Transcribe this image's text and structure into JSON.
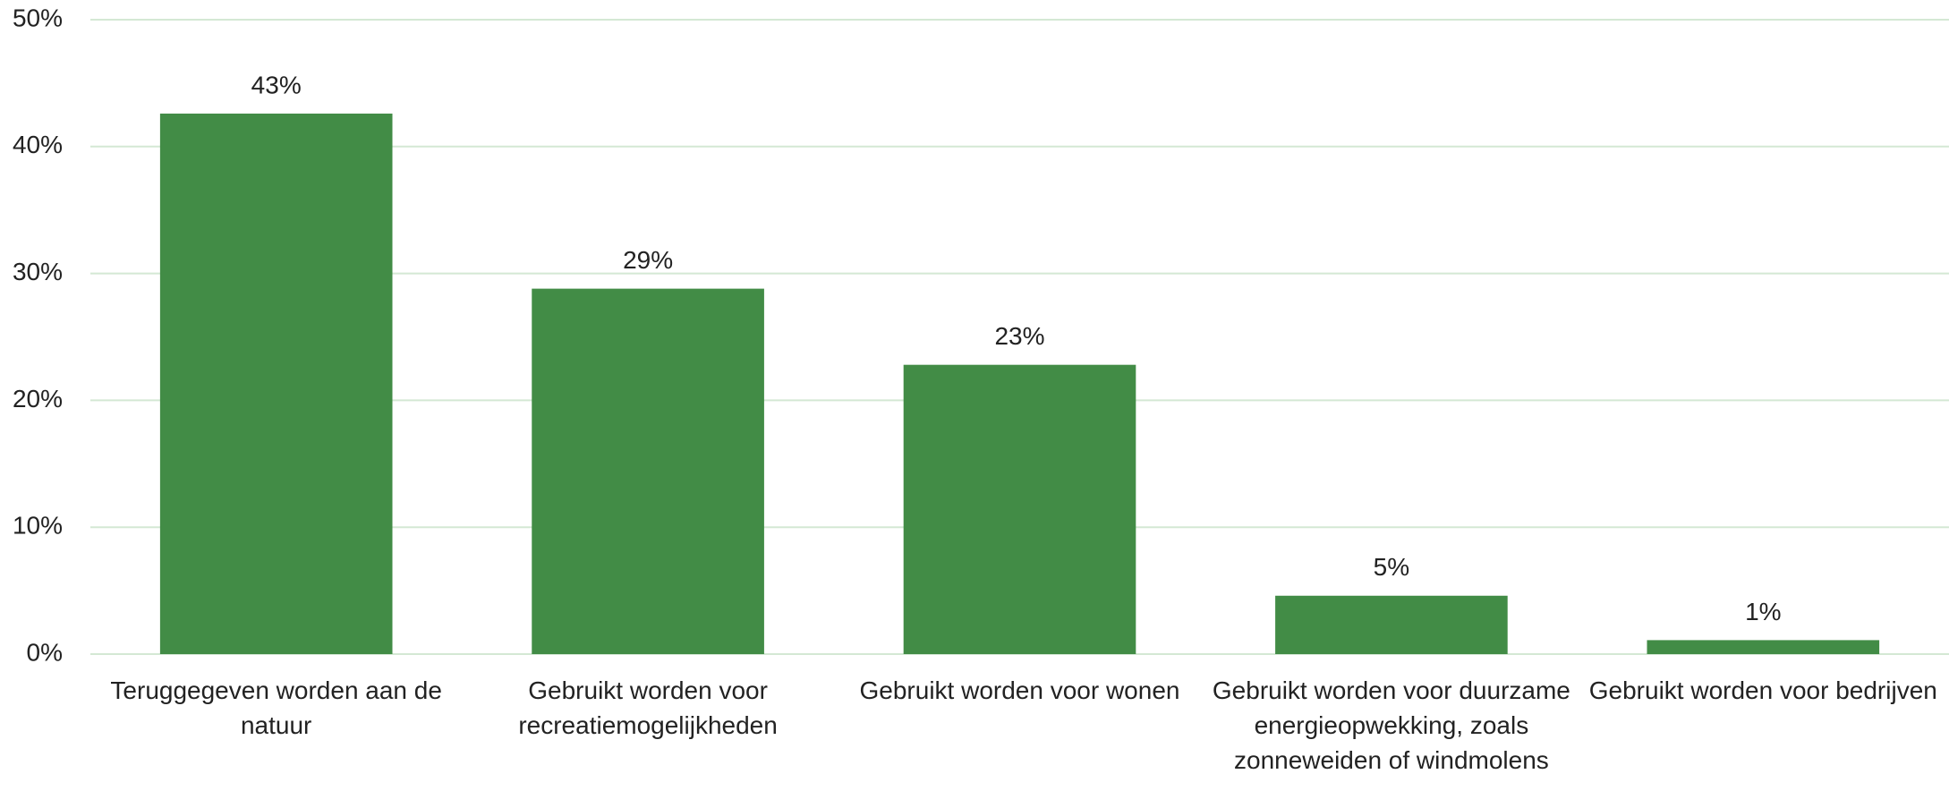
{
  "chart_data": {
    "type": "bar",
    "categories": [
      "Teruggegeven worden aan de natuur",
      "Gebruikt worden voor recreatiemogelijkheden",
      "Gebruikt worden voor wonen",
      "Gebruikt worden voor duurzame energieopwekking, zoals zonneweiden of windmolens",
      "Gebruikt worden voor bedrijven"
    ],
    "values": [
      42.6,
      28.8,
      22.8,
      4.6,
      1.1
    ],
    "value_labels": [
      "43%",
      "29%",
      "23%",
      "5%",
      "1%"
    ],
    "color": "#428c46",
    "ylim": [
      0,
      50
    ],
    "yticks": [
      {
        "value": 0,
        "label": "0%"
      },
      {
        "value": 10,
        "label": "10%"
      },
      {
        "value": 20,
        "label": "20%"
      },
      {
        "value": 30,
        "label": "30%"
      },
      {
        "value": 40,
        "label": "40%"
      },
      {
        "value": 50,
        "label": "50%"
      }
    ],
    "grid": true
  }
}
